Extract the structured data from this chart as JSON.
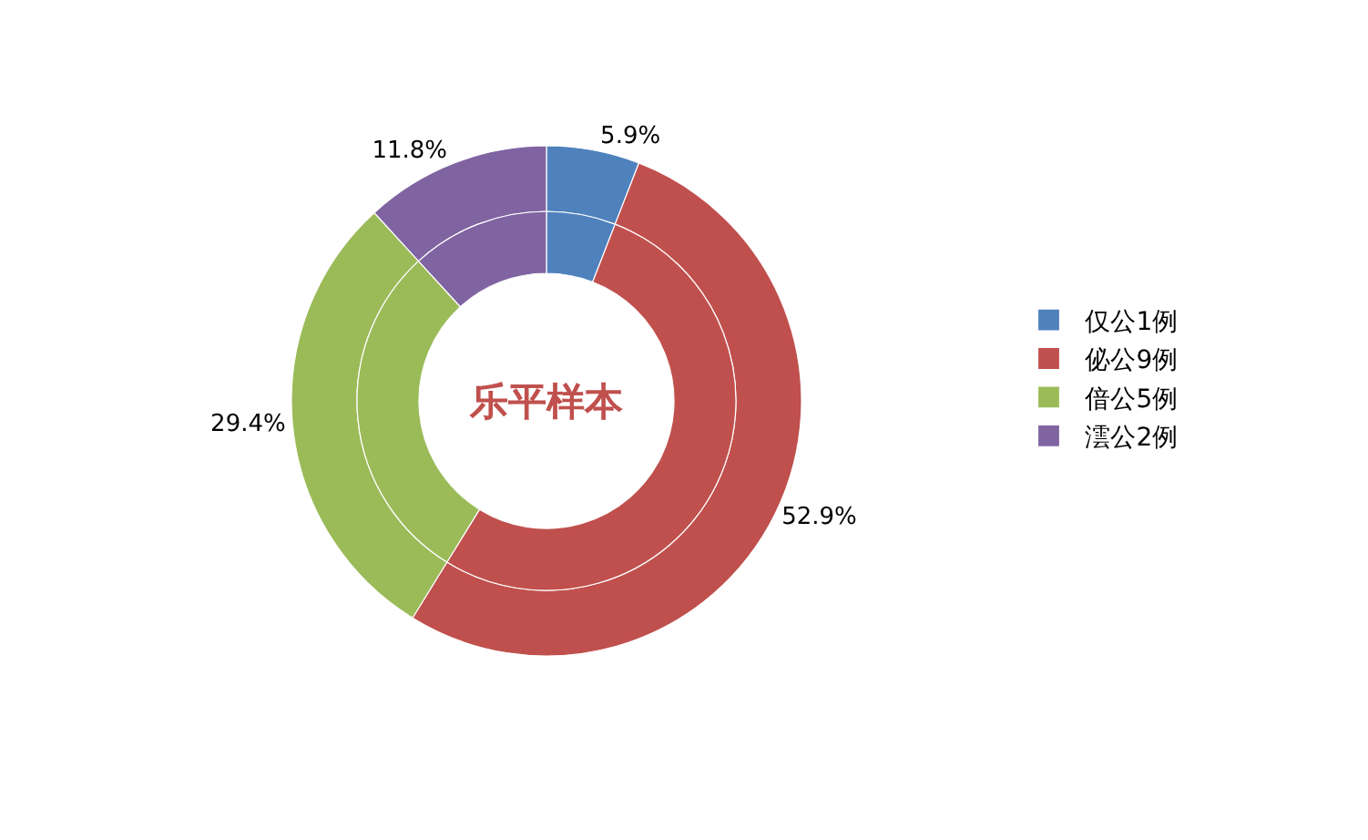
{
  "chart_data": {
    "type": "donut",
    "title": "乐平样本",
    "categories": [
      "仅公1例",
      "佖公9例",
      "偣公5例",
      "澐公2例"
    ],
    "colors": [
      "#4f81bd",
      "#c0504d",
      "#9bbb59",
      "#8064a2"
    ],
    "legend": "right",
    "series": [
      {
        "values": [
          5.9,
          52.9,
          29.4,
          11.8
        ],
        "value_labels": [
          "5.9%",
          "52.9%",
          "29.4%",
          "11.8%"
        ]
      },
      {
        "values": [
          5.9,
          52.9,
          29.4,
          11.8
        ]
      }
    ]
  }
}
